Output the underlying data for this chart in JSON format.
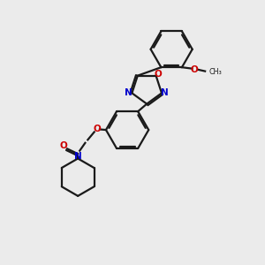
{
  "background_color": "#ebebeb",
  "bond_color": "#1a1a1a",
  "heteroatom_O_color": "#cc0000",
  "heteroatom_N_color": "#0000cc",
  "figsize": [
    3.0,
    3.0
  ],
  "dpi": 100,
  "xlim": [
    0,
    10
  ],
  "ylim": [
    0,
    10
  ]
}
